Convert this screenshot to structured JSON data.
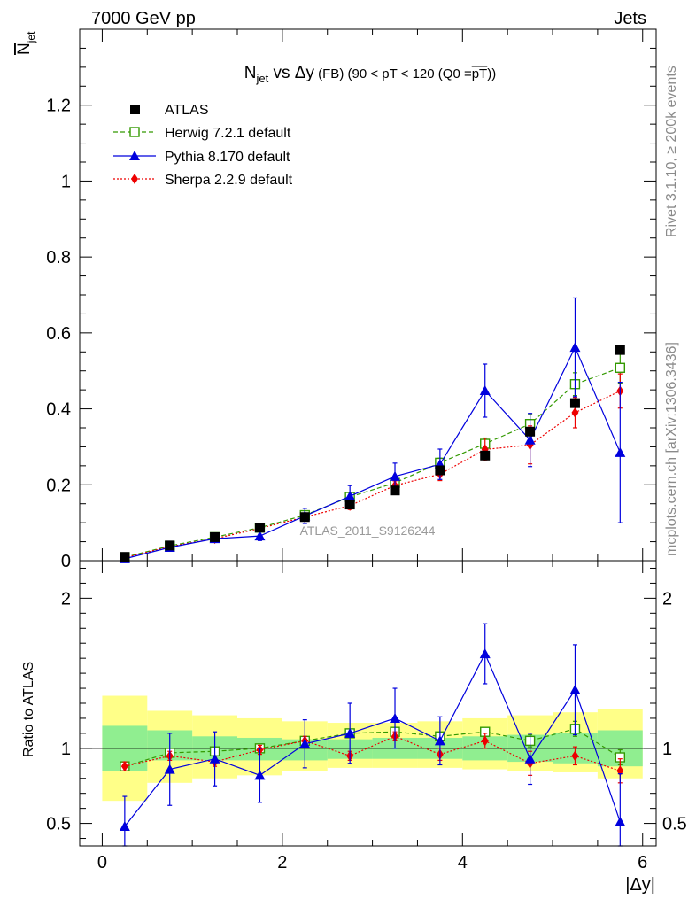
{
  "header": {
    "left": "7000 GeV pp",
    "right": "Jets"
  },
  "side_text": {
    "rivet": "Rivet 3.1.10, ≥ 200k events",
    "mcplots": "mcplots.cern.ch [arXiv:1306.3436]"
  },
  "watermark": "ATLAS_2011_S9126244",
  "colors": {
    "atlas": "#000000",
    "herwig": "#339900",
    "pythia": "#0000dd",
    "sherpa": "#ee0000",
    "band_inner": "#90ee90",
    "band_outer": "#ffff88"
  },
  "chart_data": [
    {
      "type": "scatter",
      "title": {
        "main": "N",
        "sub": "jet",
        "vs": " vs Δy",
        "fb": " (FB)",
        "rest": " (90 < pT < 120 (Q0 =",
        "overline": "pT",
        "close": "))"
      },
      "ylabel": {
        "main": "N",
        "sub": "jet"
      },
      "xlim": [
        -0.25,
        6.15
      ],
      "ylim": [
        0,
        1.4
      ],
      "yticks": [
        {
          "v": 0,
          "label": "0"
        },
        {
          "v": 0.2,
          "label": "0.2"
        },
        {
          "v": 0.4,
          "label": "0.4"
        },
        {
          "v": 0.6,
          "label": "0.6"
        },
        {
          "v": 0.8,
          "label": "0.8"
        },
        {
          "v": 1,
          "label": "1"
        },
        {
          "v": 1.2,
          "label": "1.2"
        }
      ],
      "x": [
        0.25,
        0.75,
        1.25,
        1.75,
        2.25,
        2.75,
        3.25,
        3.75,
        4.25,
        4.75,
        5.25,
        5.75
      ],
      "legend": {
        "atlas": "ATLAS",
        "herwig": "Herwig 7.2.1 default",
        "pythia": "Pythia 8.170 default",
        "sherpa": "Sherpa 2.2.9 default"
      },
      "series": [
        {
          "name": "ATLAS",
          "key": "atlas",
          "values": [
            0.01,
            0.04,
            0.062,
            0.087,
            0.115,
            0.148,
            0.185,
            0.238,
            0.277,
            0.34,
            0.415,
            0.555
          ],
          "errors": [
            0,
            0,
            0,
            0,
            0,
            0,
            0,
            0,
            0,
            0,
            0,
            0
          ]
        },
        {
          "name": "Herwig 7.2.1 default",
          "key": "herwig",
          "values": [
            0.009,
            0.039,
            0.062,
            0.087,
            0.12,
            0.168,
            0.205,
            0.258,
            0.308,
            0.36,
            0.465,
            0.508
          ],
          "errors": [
            0.002,
            0.003,
            0.004,
            0.005,
            0.007,
            0.008,
            0.01,
            0.012,
            0.015,
            0.025,
            0.03,
            0.04
          ]
        },
        {
          "name": "Pythia 8.170 default",
          "key": "pythia",
          "values": [
            0.005,
            0.035,
            0.058,
            0.065,
            0.118,
            0.17,
            0.222,
            0.254,
            0.448,
            0.318,
            0.562,
            0.285
          ],
          "errors": [
            0.003,
            0.008,
            0.01,
            0.012,
            0.02,
            0.028,
            0.035,
            0.04,
            0.07,
            0.07,
            0.13,
            0.185
          ]
        },
        {
          "name": "Sherpa 2.2.9 default",
          "key": "sherpa",
          "values": [
            0.008,
            0.037,
            0.058,
            0.085,
            0.115,
            0.145,
            0.198,
            0.228,
            0.293,
            0.305,
            0.39,
            0.447
          ],
          "errors": [
            0.002,
            0.003,
            0.004,
            0.006,
            0.008,
            0.01,
            0.012,
            0.017,
            0.03,
            0.05,
            0.04,
            0.045
          ]
        }
      ]
    },
    {
      "type": "scatter",
      "title": "",
      "ylabel": "Ratio to ATLAS",
      "xlabel": "|Δy|",
      "xlim": [
        -0.25,
        6.15
      ],
      "ylim": [
        0.35,
        2.25
      ],
      "xticks": [
        {
          "v": 0,
          "label": "0"
        },
        {
          "v": 2,
          "label": "2"
        },
        {
          "v": 4,
          "label": "4"
        },
        {
          "v": 6,
          "label": "6"
        }
      ],
      "yticks": [
        {
          "v": 0.5,
          "label": "0.5"
        },
        {
          "v": 1,
          "label": "1"
        },
        {
          "v": 2,
          "label": "2"
        }
      ],
      "x": [
        0.25,
        0.75,
        1.25,
        1.75,
        2.25,
        2.75,
        3.25,
        3.75,
        4.25,
        4.75,
        5.25,
        5.75
      ],
      "band_inner": [
        [
          0.85,
          1.15
        ],
        [
          0.92,
          1.12
        ],
        [
          0.92,
          1.08
        ],
        [
          0.92,
          1.07
        ],
        [
          0.92,
          1.06
        ],
        [
          0.93,
          1.06
        ],
        [
          0.93,
          1.07
        ],
        [
          0.93,
          1.07
        ],
        [
          0.92,
          1.08
        ],
        [
          0.91,
          1.09
        ],
        [
          0.9,
          1.1
        ],
        [
          0.88,
          1.12
        ]
      ],
      "band_outer": [
        [
          0.65,
          1.35
        ],
        [
          0.77,
          1.25
        ],
        [
          0.8,
          1.22
        ],
        [
          0.82,
          1.2
        ],
        [
          0.85,
          1.18
        ],
        [
          0.87,
          1.17
        ],
        [
          0.87,
          1.17
        ],
        [
          0.87,
          1.18
        ],
        [
          0.86,
          1.2
        ],
        [
          0.85,
          1.22
        ],
        [
          0.84,
          1.24
        ],
        [
          0.8,
          1.26
        ]
      ],
      "series": [
        {
          "name": "Herwig 7.2.1 default",
          "key": "herwig",
          "values": [
            0.88,
            0.97,
            0.98,
            1.0,
            1.05,
            1.1,
            1.11,
            1.08,
            1.11,
            1.05,
            1.13,
            0.94
          ],
          "errors": [
            0.02,
            0.02,
            0.02,
            0.02,
            0.02,
            0.02,
            0.02,
            0.02,
            0.03,
            0.04,
            0.05,
            0.05
          ]
        },
        {
          "name": "Pythia 8.170 default",
          "key": "pythia",
          "values": [
            0.48,
            0.86,
            0.93,
            0.82,
            1.03,
            1.1,
            1.2,
            1.05,
            1.63,
            0.93,
            1.39,
            0.51
          ],
          "errors": [
            0.2,
            0.24,
            0.18,
            0.18,
            0.16,
            0.2,
            0.2,
            0.16,
            0.2,
            0.17,
            0.3,
            0.32
          ]
        },
        {
          "name": "Sherpa 2.2.9 default",
          "key": "sherpa",
          "values": [
            0.88,
            0.95,
            0.91,
            0.99,
            1.05,
            0.95,
            1.08,
            0.96,
            1.05,
            0.9,
            0.95,
            0.85
          ],
          "errors": [
            0.03,
            0.03,
            0.03,
            0.03,
            0.03,
            0.03,
            0.03,
            0.04,
            0.05,
            0.08,
            0.06,
            0.08
          ]
        }
      ]
    }
  ]
}
